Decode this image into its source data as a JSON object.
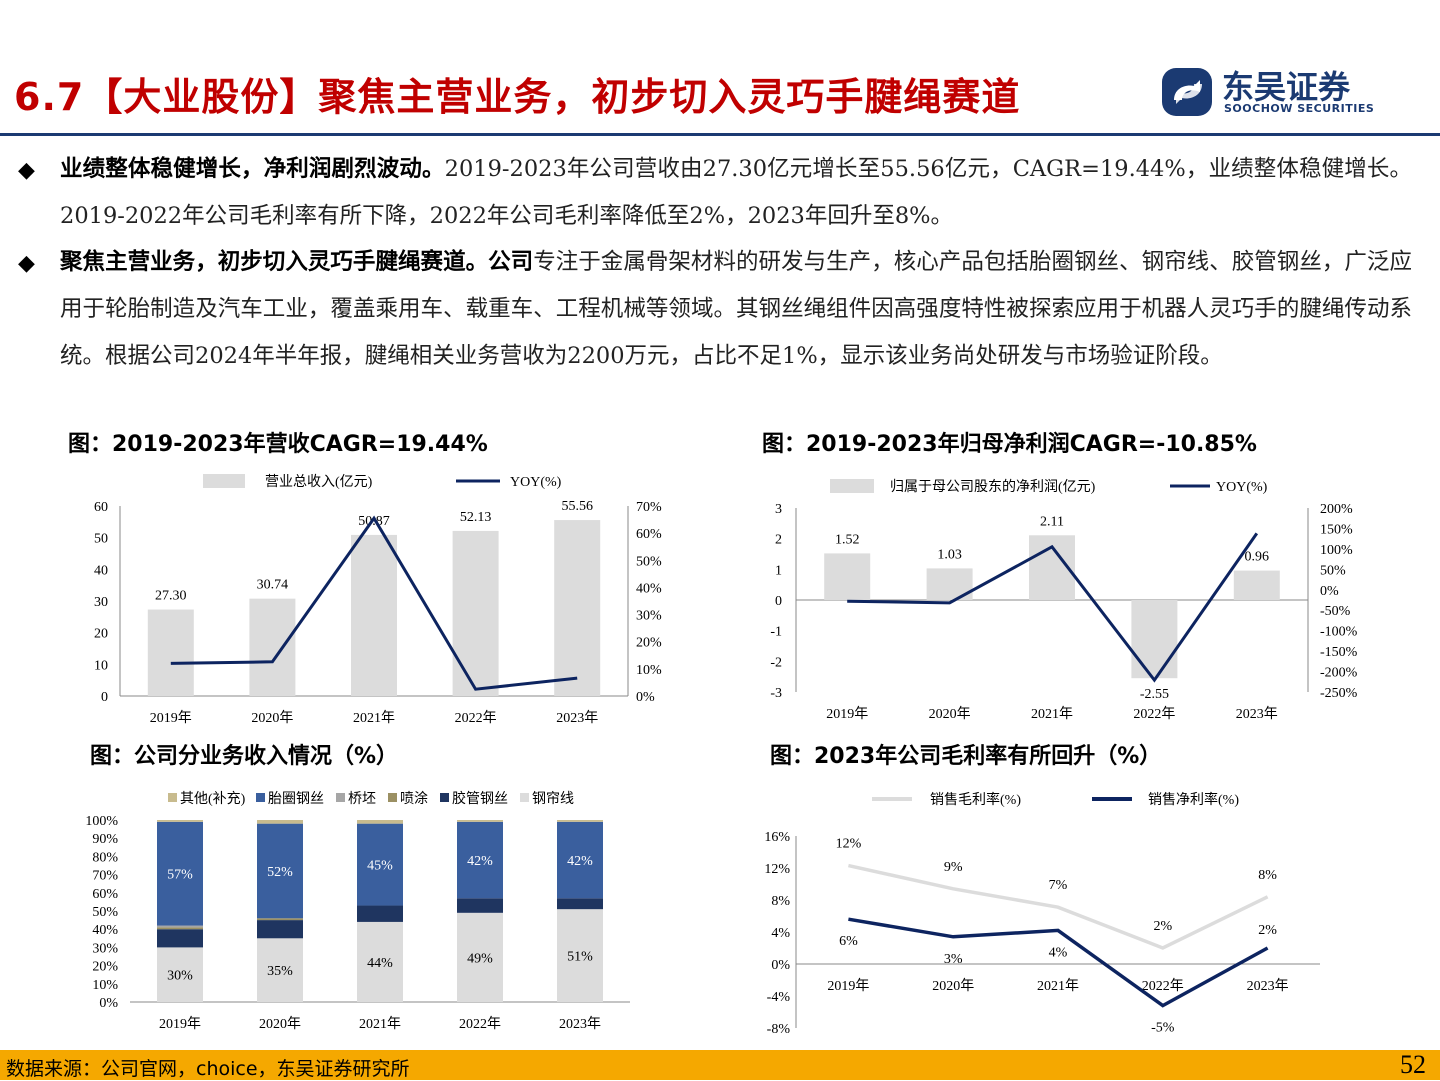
{
  "header": {
    "title": "6.7【大业股份】聚焦主营业务，初步切入灵巧手腱绳赛道",
    "logo_cn": "东吴证券",
    "logo_en": "SOOCHOW SECURITIES"
  },
  "bullets": [
    {
      "bold": "业绩整体稳健增长，净利润剧烈波动。",
      "text": "2019-2023年公司营收由27.30亿元增长至55.56亿元，CAGR=19.44%，业绩整体稳健增长。2019-2022年公司毛利率有所下降，2022年公司毛利率降低至2%，2023年回升至8%。"
    },
    {
      "bold": "聚焦主营业务，初步切入灵巧手腱绳赛道。公司",
      "text": "专注于金属骨架材料的研发与生产，核心产品包括胎圈钢丝、钢帘线、胶管钢丝，广泛应用于轮胎制造及汽车工业，覆盖乘用车、载重车、工程机械等领域。其钢丝绳组件因高强度特性被探索应用于机器人灵巧手的腱绳传动系统。根据公司2024年半年报，腱绳相关业务营收为2200万元，占比不足1%，显示该业务尚处研发与市场验证阶段。"
    }
  ],
  "figure_titles": {
    "revenue": "图：2019-2023年营收CAGR=19.44%",
    "profit": "图：2019-2023年归母净利润CAGR=-10.85%",
    "segment": "图：公司分业务收入情况（%）",
    "margin": "图：2023年公司毛利率有所回升（%）"
  },
  "footer": {
    "source": "数据来源：公司官网，choice，东吴证券研究所",
    "page": "52"
  },
  "colors": {
    "title_red": "#c00000",
    "navy": "#0d2460",
    "bar_grey": "#dcdcdc",
    "footer_orange": "#f5a800",
    "segment_blue": "#3a5f9e"
  },
  "chart_data": [
    {
      "id": "revenue",
      "type": "bar",
      "categories": [
        "2019年",
        "2020年",
        "2021年",
        "2022年",
        "2023年"
      ],
      "series": [
        {
          "name": "营业总收入(亿元)",
          "type": "bar",
          "axis": "left",
          "values": [
            27.3,
            30.74,
            50.87,
            52.13,
            55.56
          ],
          "labels": [
            "27.30",
            "30.74",
            "50.87",
            "52.13",
            "55.56"
          ]
        },
        {
          "name": "YOY(%)",
          "type": "line",
          "axis": "right",
          "values": [
            12.0,
            12.6,
            65.5,
            2.5,
            6.6
          ]
        }
      ],
      "y_left": {
        "min": 0,
        "max": 60,
        "ticks": [
          "0",
          "10",
          "20",
          "30",
          "40",
          "50",
          "60"
        ]
      },
      "y_right": {
        "min": 0,
        "max": 70,
        "ticks": [
          "0%",
          "10%",
          "20%",
          "30%",
          "40%",
          "50%",
          "60%",
          "70%"
        ]
      },
      "legend": "top"
    },
    {
      "id": "profit",
      "type": "bar",
      "categories": [
        "2019年",
        "2020年",
        "2021年",
        "2022年",
        "2023年"
      ],
      "series": [
        {
          "name": "归属于母公司股东的净利润(亿元)",
          "type": "bar",
          "axis": "left",
          "values": [
            1.52,
            1.03,
            2.11,
            -2.55,
            0.96
          ],
          "labels": [
            "1.52",
            "1.03",
            "2.11",
            "-2.55",
            "0.96"
          ]
        },
        {
          "name": "YOY(%)",
          "type": "line",
          "axis": "right",
          "values": [
            -28,
            -32,
            105,
            -221,
            138
          ]
        }
      ],
      "y_left": {
        "min": -3,
        "max": 3,
        "ticks": [
          "-3",
          "-2",
          "-1",
          "0",
          "1",
          "2",
          "3"
        ]
      },
      "y_right": {
        "min": -250,
        "max": 200,
        "ticks": [
          "-250%",
          "-200%",
          "-150%",
          "-100%",
          "-50%",
          "0%",
          "50%",
          "100%",
          "150%",
          "200%"
        ]
      },
      "legend": "top"
    },
    {
      "id": "segment",
      "type": "bar",
      "stacked": true,
      "categories": [
        "2019年",
        "2020年",
        "2021年",
        "2022年",
        "2023年"
      ],
      "series": [
        {
          "name": "钢帘线",
          "color": "#dcdcdc",
          "values": [
            30,
            35,
            44,
            49,
            51
          ],
          "labels": [
            "30%",
            "35%",
            "44%",
            "49%",
            "51%"
          ]
        },
        {
          "name": "胶管钢丝",
          "color": "#1f3560",
          "values": [
            10,
            10,
            9,
            8,
            6
          ]
        },
        {
          "name": "喷涂",
          "color": "#9b9063",
          "values": [
            1,
            1,
            0,
            0,
            0
          ]
        },
        {
          "name": "桥坯",
          "color": "#a6a6a6",
          "values": [
            1,
            0,
            0,
            0,
            0
          ]
        },
        {
          "name": "胎圈钢丝",
          "color": "#3a5f9e",
          "values": [
            57,
            52,
            45,
            42,
            42
          ],
          "labels": [
            "57%",
            "52%",
            "45%",
            "42%",
            "42%"
          ]
        },
        {
          "name": "其他(补充)",
          "color": "#c8bb8e",
          "values": [
            1,
            2,
            2,
            1,
            1
          ]
        }
      ],
      "legend_order": [
        "其他(补充)",
        "胎圈钢丝",
        "桥坯",
        "喷涂",
        "胶管钢丝",
        "钢帘线"
      ],
      "y": {
        "min": 0,
        "max": 100,
        "ticks": [
          "0%",
          "10%",
          "20%",
          "30%",
          "40%",
          "50%",
          "60%",
          "70%",
          "80%",
          "90%",
          "100%"
        ]
      },
      "legend": "top"
    },
    {
      "id": "margin",
      "type": "line",
      "categories": [
        "2019年",
        "2020年",
        "2021年",
        "2022年",
        "2023年"
      ],
      "series": [
        {
          "name": "销售毛利率(%)",
          "color": "#dcdcdc",
          "values": [
            12.3,
            9.4,
            7.1,
            2.0,
            8.4
          ],
          "labels": [
            "12%",
            "9%",
            "7%",
            "2%",
            "8%"
          ]
        },
        {
          "name": "销售净利率(%)",
          "color": "#0d2460",
          "values": [
            5.6,
            3.4,
            4.2,
            -5.2,
            2.0
          ],
          "labels": [
            "6%",
            "3%",
            "4%",
            "-5%",
            "2%"
          ]
        }
      ],
      "y": {
        "min": -8,
        "max": 16,
        "ticks": [
          "-8%",
          "-4%",
          "0%",
          "4%",
          "8%",
          "12%",
          "16%"
        ]
      },
      "legend": "top"
    }
  ]
}
